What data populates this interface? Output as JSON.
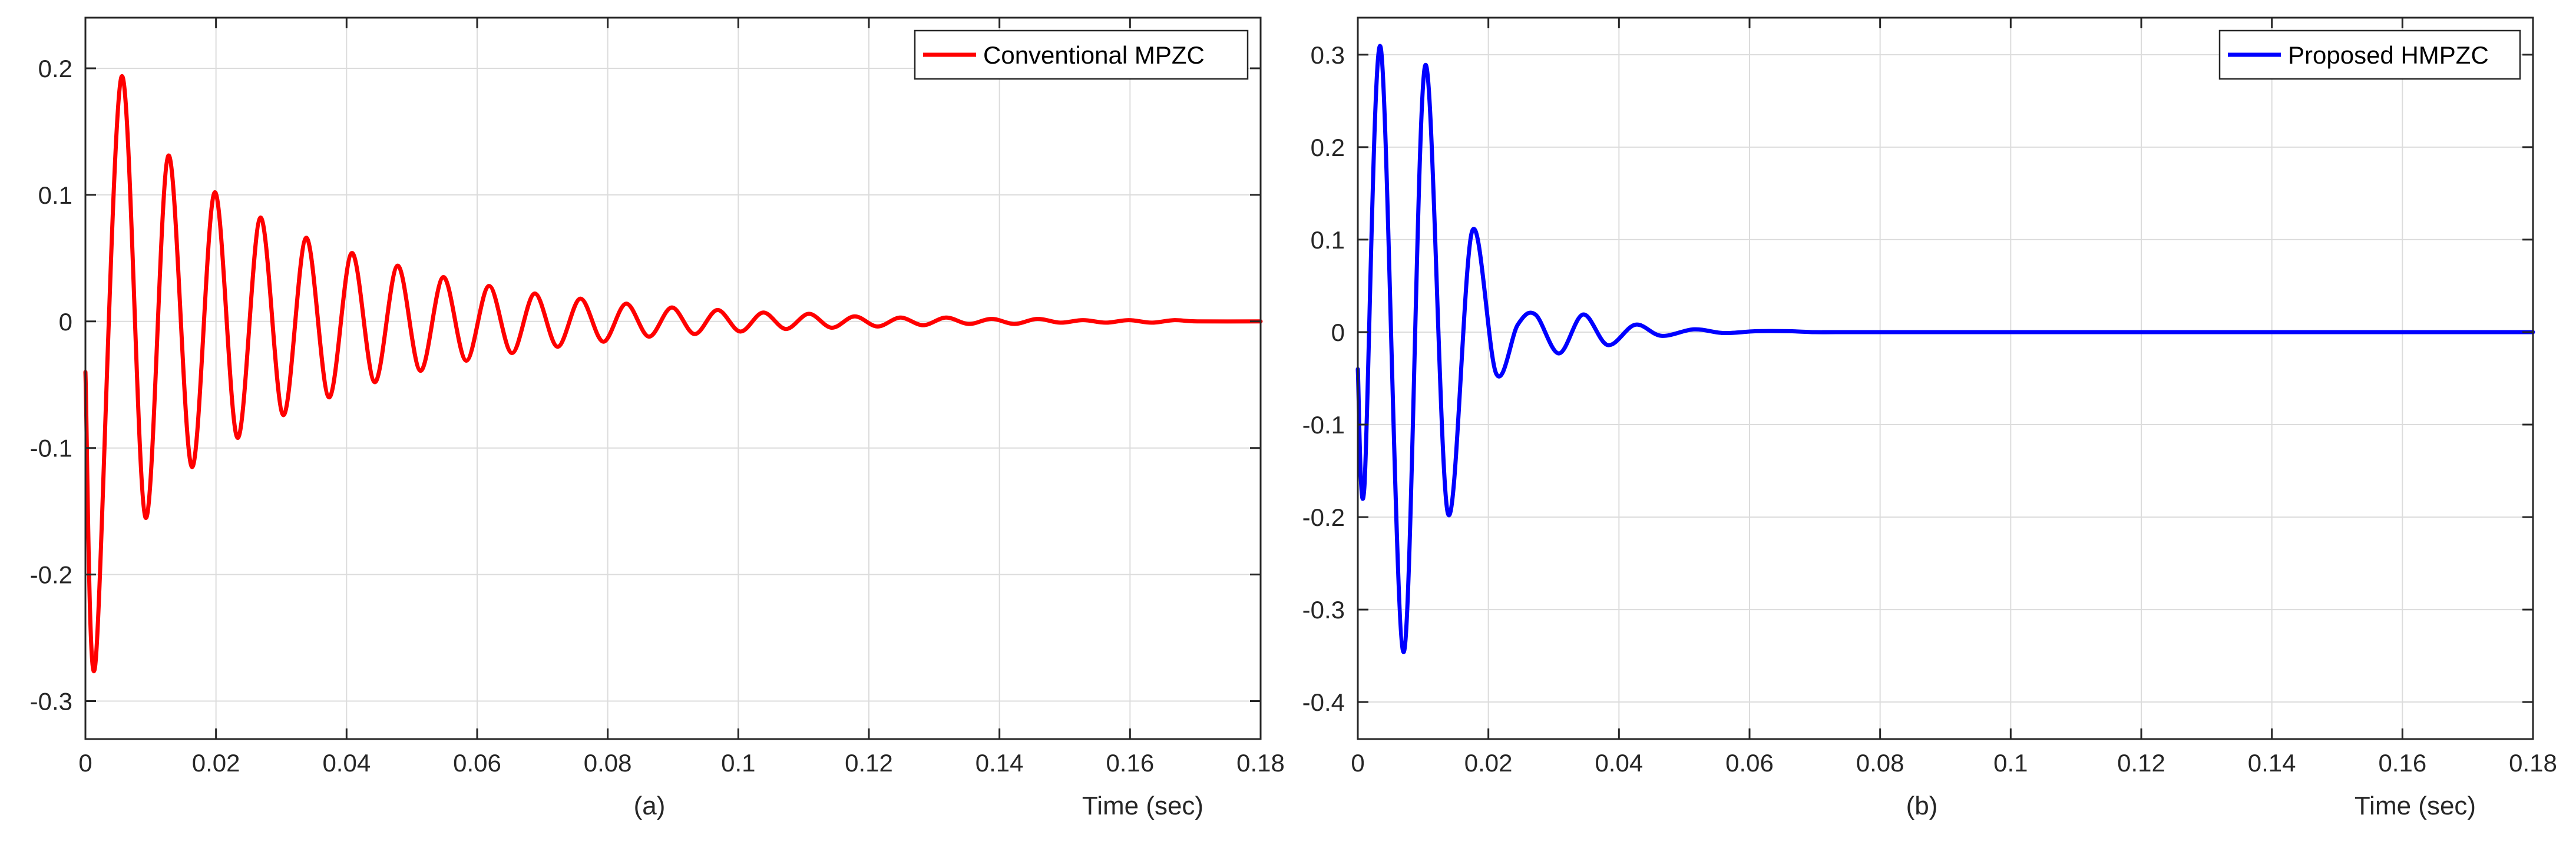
{
  "chart_data": [
    {
      "type": "line",
      "panel_label": "(a)",
      "xlabel": "Time (sec)",
      "ylabel": "",
      "xlim": [
        0,
        0.18
      ],
      "ylim": [
        -0.33,
        0.24
      ],
      "xticks": [
        0,
        0.02,
        0.04,
        0.06,
        0.08,
        0.1,
        0.12,
        0.14,
        0.16,
        0.18
      ],
      "xtick_labels": [
        "0",
        "0.02",
        "0.04",
        "0.06",
        "0.08",
        "0.1",
        "0.12",
        "0.14",
        "0.16",
        "0.18"
      ],
      "yticks": [
        -0.3,
        -0.2,
        -0.1,
        0,
        0.1,
        0.2
      ],
      "ytick_labels": [
        "-0.3",
        "-0.2",
        "-0.1",
        "0",
        "0.1",
        "0.2"
      ],
      "grid": true,
      "legend_position": "top-right",
      "series": [
        {
          "name": "Conventional MPZC",
          "color": "#ff0000",
          "x": [
            0,
            0.0015,
            0.0055,
            0.0092,
            0.0127,
            0.0163,
            0.0198,
            0.0233,
            0.0268,
            0.0303,
            0.0338,
            0.0373,
            0.0408,
            0.0443,
            0.0478,
            0.0513,
            0.0548,
            0.0583,
            0.0618,
            0.0653,
            0.0688,
            0.0723,
            0.0758,
            0.0793,
            0.0828,
            0.0863,
            0.0898,
            0.0933,
            0.0968,
            0.1003,
            0.1038,
            0.1073,
            0.1108,
            0.1143,
            0.1178,
            0.1213,
            0.1248,
            0.1283,
            0.1318,
            0.1353,
            0.1388,
            0.1423,
            0.1458,
            0.1493,
            0.1528,
            0.1563,
            0.1598,
            0.1633,
            0.1668,
            0.1703,
            0.18
          ],
          "y": [
            -0.04,
            -0.272,
            0.193,
            -0.155,
            0.131,
            -0.115,
            0.102,
            -0.092,
            0.082,
            -0.074,
            0.066,
            -0.06,
            0.054,
            -0.048,
            0.044,
            -0.039,
            0.035,
            -0.031,
            0.028,
            -0.025,
            0.022,
            -0.02,
            0.018,
            -0.016,
            0.014,
            -0.012,
            0.011,
            -0.01,
            0.009,
            -0.008,
            0.007,
            -0.006,
            0.006,
            -0.005,
            0.004,
            -0.004,
            0.003,
            -0.003,
            0.003,
            -0.002,
            0.002,
            -0.002,
            0.002,
            -0.001,
            0.001,
            -0.001,
            0.001,
            -0.001,
            0.001,
            0,
            0
          ]
        }
      ]
    },
    {
      "type": "line",
      "panel_label": "(b)",
      "xlabel": "Time (sec)",
      "ylabel": "",
      "xlim": [
        0,
        0.18
      ],
      "ylim": [
        -0.44,
        0.34
      ],
      "xticks": [
        0,
        0.02,
        0.04,
        0.06,
        0.08,
        0.1,
        0.12,
        0.14,
        0.16,
        0.18
      ],
      "xtick_labels": [
        "0",
        "0.02",
        "0.04",
        "0.06",
        "0.08",
        "0.1",
        "0.12",
        "0.14",
        "0.16",
        "0.18"
      ],
      "yticks": [
        -0.4,
        -0.3,
        -0.2,
        -0.1,
        0,
        0.1,
        0.2,
        0.3
      ],
      "ytick_labels": [
        "-0.4",
        "-0.3",
        "-0.2",
        "-0.1",
        "0",
        "0.1",
        "0.2",
        "0.3"
      ],
      "grid": true,
      "legend_position": "top-right",
      "series": [
        {
          "name": "Proposed HMPZC",
          "color": "#0000ff",
          "x": [
            0,
            0.001,
            0.0035,
            0.007,
            0.0103,
            0.0138,
            0.0175,
            0.0212,
            0.0245,
            0.0272,
            0.0308,
            0.0345,
            0.0383,
            0.0425,
            0.0465,
            0.0515,
            0.056,
            0.061,
            0.066,
            0.07,
            0.075,
            0.08,
            0.18
          ],
          "y": [
            -0.04,
            -0.168,
            0.308,
            -0.346,
            0.288,
            -0.196,
            0.109,
            -0.045,
            0.008,
            0.019,
            -0.023,
            0.019,
            -0.014,
            0.008,
            -0.004,
            0.003,
            -0.001,
            0.001,
            0.001,
            0,
            0,
            0,
            0
          ]
        }
      ]
    }
  ]
}
